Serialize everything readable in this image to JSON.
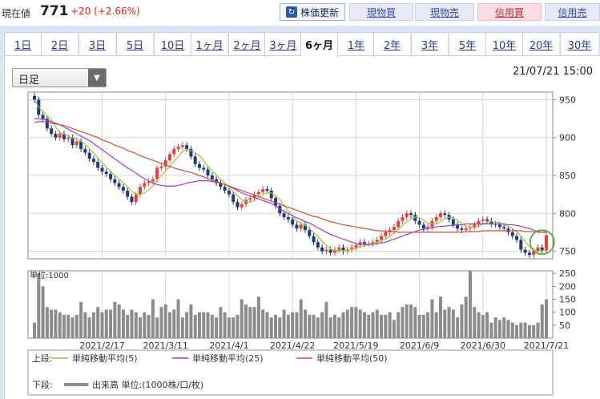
{
  "header": {
    "price_label": "現在値",
    "price_value": "771",
    "price_change": "+20 (+2.66%)",
    "refresh_label": "株価更新",
    "buttons": [
      "現物買",
      "現物売",
      "信用買",
      "信用売"
    ]
  },
  "tabs": [
    "1日",
    "2日",
    "3日",
    "5日",
    "10日",
    "1ヶ月",
    "2ヶ月",
    "3ヶ月",
    "6ヶ月",
    "1年",
    "2年",
    "3年",
    "5年",
    "10年",
    "20年",
    "30年"
  ],
  "active_tab": "6ヶ月",
  "dropdown": {
    "value": "日足"
  },
  "datetime": "21/07/21 15:00",
  "colors": {
    "up": "#e8413a",
    "down": "#1f3b78",
    "ma5": "#9bc43a",
    "ma25": "#9b3fd0",
    "ma50": "#c8543a",
    "volume": "#8c8c8c",
    "highlight": "#6aa84f"
  },
  "chart_data": [
    {
      "type": "candlestick",
      "x": [
        "2021-01-25",
        "2021-01-26",
        "2021-01-27",
        "2021-01-28",
        "2021-01-29",
        "2021-02-01",
        "2021-02-02",
        "2021-02-03",
        "2021-02-04",
        "2021-02-05",
        "2021-02-08",
        "2021-02-09",
        "2021-02-10",
        "2021-02-12",
        "2021-02-15",
        "2021-02-16",
        "2021-02-17",
        "2021-02-18",
        "2021-02-19",
        "2021-02-22",
        "2021-02-24",
        "2021-02-25",
        "2021-02-26",
        "2021-03-01",
        "2021-03-02",
        "2021-03-03",
        "2021-03-04",
        "2021-03-05",
        "2021-03-08",
        "2021-03-09",
        "2021-03-10",
        "2021-03-11",
        "2021-03-12",
        "2021-03-15",
        "2021-03-16",
        "2021-03-17",
        "2021-03-18",
        "2021-03-19",
        "2021-03-22",
        "2021-03-23",
        "2021-03-24",
        "2021-03-25",
        "2021-03-26",
        "2021-03-29",
        "2021-03-30",
        "2021-03-31",
        "2021-04-01",
        "2021-04-02",
        "2021-04-05",
        "2021-04-06",
        "2021-04-07",
        "2021-04-08",
        "2021-04-09",
        "2021-04-12",
        "2021-04-13",
        "2021-04-14",
        "2021-04-15",
        "2021-04-16",
        "2021-04-19",
        "2021-04-20",
        "2021-04-21",
        "2021-04-22",
        "2021-04-23",
        "2021-04-26",
        "2021-04-27",
        "2021-04-28",
        "2021-04-30",
        "2021-05-06",
        "2021-05-07",
        "2021-05-10",
        "2021-05-11",
        "2021-05-12",
        "2021-05-13",
        "2021-05-14",
        "2021-05-17",
        "2021-05-18",
        "2021-05-19",
        "2021-05-20",
        "2021-05-21",
        "2021-05-24",
        "2021-05-25",
        "2021-05-26",
        "2021-05-27",
        "2021-05-28",
        "2021-05-31",
        "2021-06-01",
        "2021-06-02",
        "2021-06-03",
        "2021-06-04",
        "2021-06-07",
        "2021-06-08",
        "2021-06-09",
        "2021-06-10",
        "2021-06-11",
        "2021-06-14",
        "2021-06-15",
        "2021-06-16",
        "2021-06-17",
        "2021-06-18",
        "2021-06-21",
        "2021-06-22",
        "2021-06-23",
        "2021-06-24",
        "2021-06-25",
        "2021-06-28",
        "2021-06-29",
        "2021-06-30",
        "2021-07-01",
        "2021-07-02",
        "2021-07-05",
        "2021-07-06",
        "2021-07-07",
        "2021-07-08",
        "2021-07-09",
        "2021-07-12",
        "2021-07-13",
        "2021-07-14",
        "2021-07-15",
        "2021-07-16",
        "2021-07-19",
        "2021-07-20",
        "2021-07-21"
      ],
      "close": [
        950,
        930,
        925,
        912,
        905,
        900,
        905,
        898,
        900,
        890,
        895,
        885,
        880,
        872,
        868,
        860,
        855,
        852,
        845,
        840,
        835,
        830,
        822,
        815,
        825,
        835,
        840,
        842,
        845,
        860,
        862,
        870,
        878,
        885,
        888,
        890,
        885,
        875,
        865,
        860,
        858,
        850,
        845,
        840,
        835,
        830,
        825,
        815,
        808,
        812,
        818,
        820,
        825,
        828,
        832,
        830,
        820,
        810,
        800,
        795,
        792,
        785,
        780,
        785,
        778,
        770,
        762,
        755,
        750,
        752,
        748,
        752,
        755,
        750,
        752,
        755,
        758,
        762,
        760,
        760,
        762,
        765,
        770,
        775,
        778,
        782,
        790,
        795,
        800,
        798,
        790,
        785,
        780,
        782,
        790,
        795,
        800,
        798,
        792,
        785,
        780,
        778,
        780,
        782,
        785,
        790,
        792,
        790,
        786,
        785,
        782,
        780,
        775,
        770,
        765,
        752,
        748,
        745,
        750,
        755,
        751,
        771
      ],
      "ohlc_note": "",
      "yrange": [
        740,
        960
      ],
      "yticks": [
        750,
        800,
        850,
        900,
        950
      ],
      "moving_averages": [
        {
          "name": "単純移動平均(5)",
          "values": [
            950,
            940,
            935,
            929,
            924,
            914,
            907,
            904,
            902,
            899,
            898,
            895,
            892,
            885,
            880,
            873,
            867,
            861,
            856,
            850,
            845,
            840,
            835,
            829,
            825,
            825,
            827,
            831,
            836,
            844,
            850,
            856,
            862,
            869,
            875,
            882,
            884,
            883,
            880,
            876,
            870,
            862,
            856,
            851,
            845,
            840,
            835,
            829,
            823,
            818,
            815,
            815,
            817,
            821,
            825,
            827,
            827,
            823,
            818,
            811,
            803,
            796,
            790,
            787,
            784,
            780,
            775,
            770,
            763,
            758,
            753,
            751,
            751,
            751,
            751,
            753,
            754,
            756,
            757,
            759,
            760,
            762,
            764,
            766,
            770,
            774,
            779,
            784,
            789,
            793,
            795,
            794,
            791,
            787,
            786,
            786,
            789,
            793,
            795,
            794,
            791,
            787,
            783,
            781,
            781,
            783,
            786,
            788,
            789,
            789,
            787,
            785,
            783,
            780,
            776,
            770,
            763,
            756,
            752,
            750,
            750,
            754
          ]
        },
        {
          "name": "単純移動平均(25)",
          "values": [
            925,
            925,
            924,
            923,
            921,
            919,
            917,
            914,
            911,
            908,
            905,
            902,
            899,
            896,
            892,
            888,
            884,
            880,
            876,
            872,
            868,
            864,
            860,
            857,
            853,
            849,
            846,
            843,
            840,
            838,
            837,
            836,
            836,
            836,
            837,
            838,
            840,
            841,
            842,
            843,
            843,
            843,
            842,
            841,
            840,
            838,
            836,
            833,
            830,
            827,
            825,
            823,
            821,
            819,
            817,
            815,
            813,
            810,
            806,
            803,
            800,
            797,
            794,
            792,
            789,
            787,
            784,
            781,
            778,
            775,
            772,
            770,
            768,
            766,
            764,
            762,
            760,
            759,
            759,
            759,
            759,
            760,
            761,
            762,
            764,
            766,
            768,
            770,
            772,
            774,
            776,
            778,
            779,
            780,
            781,
            782,
            783,
            783,
            784,
            784,
            785,
            785,
            786,
            786,
            786,
            786,
            786,
            786,
            786,
            786,
            786,
            786,
            785,
            785,
            784,
            783,
            781,
            780,
            778,
            776,
            775,
            776
          ]
        },
        {
          "name": "単純移動平均(50)",
          "values": [
            920,
            921,
            921,
            920,
            919,
            918,
            917,
            916,
            914,
            912,
            910,
            908,
            906,
            904,
            902,
            900,
            897,
            895,
            893,
            890,
            888,
            886,
            883,
            881,
            879,
            876,
            874,
            872,
            870,
            868,
            866,
            864,
            862,
            860,
            858,
            857,
            855,
            854,
            852,
            850,
            848,
            846,
            844,
            842,
            840,
            838,
            836,
            834,
            832,
            830,
            828,
            826,
            824,
            822,
            820,
            818,
            816,
            814,
            812,
            810,
            808,
            806,
            804,
            802,
            800,
            798,
            796,
            795,
            793,
            791,
            789,
            788,
            786,
            785,
            784,
            783,
            782,
            781,
            780,
            779,
            778,
            777,
            777,
            776,
            776,
            776,
            775,
            775,
            775,
            775,
            775,
            775,
            775,
            775,
            775,
            775,
            775,
            775,
            775,
            775,
            775,
            775,
            776,
            776,
            776,
            776,
            777,
            777,
            777,
            777,
            777,
            777,
            777,
            777,
            777,
            777,
            776,
            776,
            776,
            775,
            775,
            775
          ]
        }
      ]
    },
    {
      "type": "bar",
      "unit_label": "単位:1000",
      "yrange": [
        0,
        260
      ],
      "yticks": [
        50,
        100,
        150,
        200,
        250
      ],
      "x_tick_labels": [
        "2021/2/17",
        "2021/3/11",
        "2021/4/1",
        "2021/4/22",
        "2021/5/19",
        "2021/6/9",
        "2021/6/30",
        "2021/7/21"
      ],
      "values": [
        60,
        250,
        200,
        120,
        110,
        110,
        100,
        90,
        90,
        80,
        90,
        140,
        100,
        80,
        100,
        120,
        100,
        110,
        110,
        140,
        130,
        110,
        90,
        110,
        100,
        80,
        100,
        90,
        150,
        80,
        120,
        130,
        100,
        110,
        150,
        80,
        100,
        130,
        90,
        100,
        100,
        100,
        90,
        80,
        120,
        100,
        80,
        80,
        90,
        150,
        130,
        120,
        120,
        160,
        110,
        100,
        80,
        90,
        80,
        110,
        90,
        100,
        100,
        150,
        110,
        90,
        90,
        80,
        100,
        140,
        80,
        90,
        80,
        100,
        110,
        120,
        120,
        110,
        100,
        90,
        100,
        110,
        90,
        90,
        100,
        70,
        100,
        120,
        130,
        130,
        120,
        90,
        90,
        100,
        150,
        100,
        160,
        110,
        120,
        110,
        80,
        130,
        160,
        260,
        120,
        100,
        90,
        100,
        60,
        80,
        70,
        80,
        70,
        60,
        50,
        60,
        60,
        50,
        50,
        60,
        130,
        150
      ],
      "legend": [
        {
          "group": "上段:",
          "items": [
            "単純移動平均(5)",
            "単純移動平均(25)",
            "単純移動平均(50)"
          ]
        },
        {
          "group": "下段:",
          "items": [
            "出来高 単位:(1000株/口/枚)"
          ]
        }
      ]
    }
  ]
}
